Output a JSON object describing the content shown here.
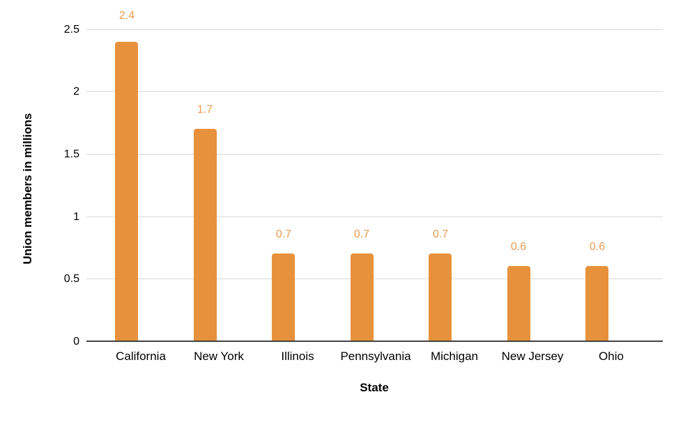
{
  "chart_data": {
    "type": "bar",
    "title": "",
    "categories": [
      "California",
      "New York",
      "Illinois",
      "Pennsylvania",
      "Michigan",
      "New Jersey",
      "Ohio"
    ],
    "values": [
      2.4,
      1.7,
      0.7,
      0.7,
      0.7,
      0.6,
      0.6
    ],
    "data_labels": [
      "2.4",
      "1.7",
      "0.7",
      "0.7",
      "0.7",
      "0.6",
      "0.6"
    ],
    "xlabel": "State",
    "ylabel": "Union members in millions",
    "ylim": [
      0,
      2.5
    ],
    "ytick_step": 0.5,
    "ytick_labels": [
      "0",
      "0.5",
      "1",
      "1.5",
      "2",
      "2.5"
    ],
    "grid": true,
    "legend": "none",
    "colors": {
      "bar": "#E8913C",
      "data_label": "#EC9B4F",
      "gridline": "#D9D9D9",
      "axis_line": "#424242",
      "text": "#000000",
      "background": "#FFFFFF"
    }
  }
}
